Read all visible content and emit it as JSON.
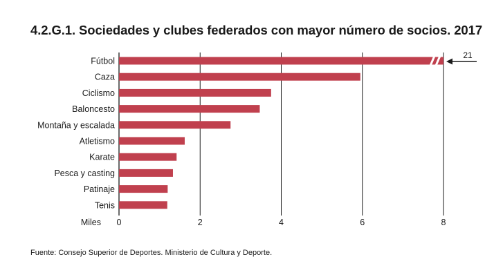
{
  "title": "4.2.G.1. Sociedades y clubes federados con mayor número de socios. 2017",
  "source": "Fuente: Consejo Superior de Deportes. Ministerio de Cultura y Deporte.",
  "colors": {
    "bar": "#c0404e",
    "grid": "#1a1a1a",
    "text": "#1a1a1a"
  },
  "chart_data": {
    "type": "bar",
    "orientation": "horizontal",
    "title": "4.2.G.1. Sociedades y clubes federados con mayor número de socios. 2017",
    "xlabel": "Miles",
    "xlim": [
      0,
      8
    ],
    "xticks": [
      0,
      2,
      4,
      6,
      8
    ],
    "grid": true,
    "categories": [
      "Fútbol",
      "Caza",
      "Ciclismo",
      "Baloncesto",
      "Montaña y escalada",
      "Atletismo",
      "Karate",
      "Pesca y casting",
      "Patinaje",
      "Tenis"
    ],
    "values": [
      21,
      5.95,
      3.75,
      3.47,
      2.75,
      1.62,
      1.42,
      1.33,
      1.2,
      1.19
    ],
    "axis_break": {
      "category": "Fútbol",
      "label": "21"
    }
  }
}
